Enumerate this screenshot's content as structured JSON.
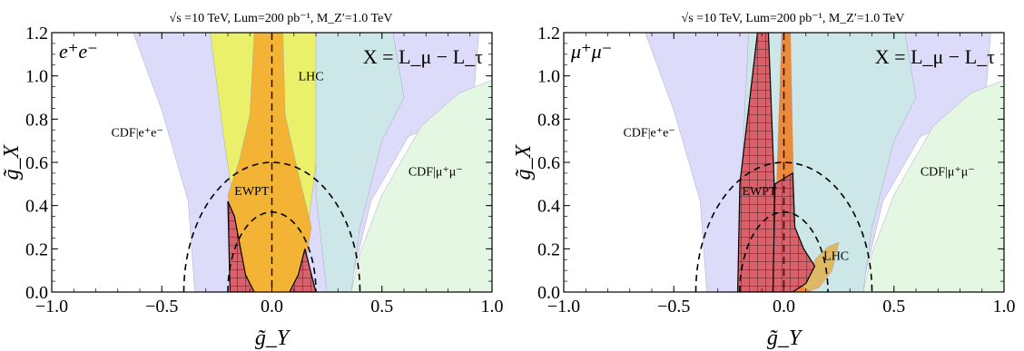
{
  "chart_data": [
    {
      "type": "area",
      "title": "√s =10 TeV,   Lum=200 pb⁻¹,   M_Z′=1.0 TeV",
      "xlabel": "g̃_Y",
      "ylabel": "g̃_X",
      "xlim": [
        -1.0,
        1.0
      ],
      "ylim": [
        0.0,
        1.2
      ],
      "xticks": [
        "−1.0",
        "−0.5",
        "0.0",
        "0.5",
        "1.0"
      ],
      "yticks": [
        "0.0",
        "0.2",
        "0.4",
        "0.6",
        "0.8",
        "1.0",
        "1.2"
      ],
      "corner_label": "e⁺e⁻",
      "model_label": "X = L_μ − L_τ",
      "regions": [
        {
          "name": "CDF|e⁺e⁻",
          "color": "#dcdcfa",
          "points": [
            [
              -0.63,
              1.2
            ],
            [
              -0.5,
              0.84
            ],
            [
              -0.38,
              0.42
            ],
            [
              -0.35,
              0.0
            ],
            [
              0.35,
              0.0
            ],
            [
              0.45,
              0.42
            ],
            [
              0.62,
              0.72
            ],
            [
              0.8,
              0.8
            ],
            [
              0.92,
              0.95
            ],
            [
              0.94,
              1.2
            ]
          ]
        },
        {
          "name": "CDF|μ⁺μ⁻",
          "color": "#e4f7e2",
          "points": [
            [
              0.36,
              0.0
            ],
            [
              1.0,
              0.0
            ],
            [
              1.0,
              0.98
            ],
            [
              0.85,
              0.92
            ],
            [
              0.68,
              0.77
            ],
            [
              0.5,
              0.45
            ],
            [
              0.4,
              0.18
            ]
          ]
        },
        {
          "name": "LHC",
          "color": "#eaf06a",
          "points": [
            [
              -0.28,
              1.2
            ],
            [
              -0.22,
              0.72
            ],
            [
              -0.15,
              0.25
            ],
            [
              -0.13,
              0.0
            ],
            [
              0.13,
              0.0
            ],
            [
              0.17,
              0.35
            ],
            [
              0.22,
              0.75
            ],
            [
              0.28,
              1.2
            ]
          ]
        },
        {
          "name": "EWPT",
          "color": "#f3b436",
          "points": [
            [
              -0.08,
              1.2
            ],
            [
              -0.1,
              0.82
            ],
            [
              -0.15,
              0.6
            ],
            [
              -0.2,
              0.45
            ],
            [
              -0.13,
              0.0
            ],
            [
              0.13,
              0.0
            ],
            [
              0.18,
              0.3
            ],
            [
              0.12,
              0.55
            ],
            [
              0.06,
              0.82
            ],
            [
              0.05,
              1.2
            ]
          ]
        },
        {
          "name": "cdf-overlap",
          "color": "#cde6e8",
          "points": [
            [
              0.2,
              1.2
            ],
            [
              0.2,
              0.7
            ],
            [
              0.2,
              0.45
            ],
            [
              0.25,
              0.0
            ],
            [
              0.36,
              0.0
            ],
            [
              0.4,
              0.3
            ],
            [
              0.5,
              0.7
            ],
            [
              0.6,
              0.9
            ],
            [
              0.55,
              1.2
            ]
          ]
        }
      ],
      "excluded_regions": [
        {
          "points": [
            [
              -0.19,
              0.0
            ],
            [
              -0.2,
              0.42
            ],
            [
              -0.17,
              0.35
            ],
            [
              -0.12,
              0.08
            ],
            [
              -0.08,
              0.0
            ]
          ]
        },
        {
          "points": [
            [
              0.08,
              0.0
            ],
            [
              0.12,
              0.08
            ],
            [
              0.15,
              0.2
            ],
            [
              0.18,
              0.08
            ],
            [
              0.2,
              0.0
            ]
          ]
        }
      ],
      "ellipses": [
        {
          "rx": 0.4,
          "ry": 0.6
        },
        {
          "rx": 0.2,
          "ry": 0.37
        }
      ],
      "labels": [
        {
          "text": "CDF|e⁺e⁻",
          "x": -0.73,
          "y": 0.72
        },
        {
          "text": "CDF|μ⁺μ⁻",
          "x": 0.62,
          "y": 0.54
        },
        {
          "text": "LHC",
          "x": 0.12,
          "y": 0.98
        },
        {
          "text": "EWPT",
          "x": -0.17,
          "y": 0.45
        }
      ]
    },
    {
      "type": "area",
      "title": "√s =10 TeV,   Lum=200 pb⁻¹,   M_Z′=1.0 TeV",
      "xlabel": "g̃_Y",
      "ylabel": "g̃_X",
      "xlim": [
        -1.0,
        1.0
      ],
      "ylim": [
        0.0,
        1.2
      ],
      "xticks": [
        "−1.0",
        "−0.5",
        "0.0",
        "0.5",
        "1.0"
      ],
      "yticks": [
        "0.0",
        "0.2",
        "0.4",
        "0.6",
        "0.8",
        "1.0",
        "1.2"
      ],
      "corner_label": "μ⁺μ⁻",
      "model_label": "X = L_μ − L_τ",
      "regions": [
        {
          "name": "CDF|e⁺e⁻",
          "color": "#dcdcfa",
          "points": [
            [
              -0.63,
              1.2
            ],
            [
              -0.5,
              0.84
            ],
            [
              -0.38,
              0.42
            ],
            [
              -0.35,
              0.0
            ],
            [
              0.35,
              0.0
            ],
            [
              0.45,
              0.42
            ],
            [
              0.62,
              0.72
            ],
            [
              0.8,
              0.8
            ],
            [
              0.92,
              0.95
            ],
            [
              0.94,
              1.2
            ]
          ]
        },
        {
          "name": "CDF|μ⁺μ⁻",
          "color": "#e4f7e2",
          "points": [
            [
              0.36,
              0.0
            ],
            [
              1.0,
              0.0
            ],
            [
              1.0,
              0.98
            ],
            [
              0.85,
              0.92
            ],
            [
              0.68,
              0.77
            ],
            [
              0.5,
              0.45
            ],
            [
              0.4,
              0.18
            ]
          ]
        },
        {
          "name": "cdf-overlap",
          "color": "#cde6e8",
          "points": [
            [
              -0.16,
              1.2
            ],
            [
              -0.18,
              0.8
            ],
            [
              -0.2,
              0.3
            ],
            [
              -0.2,
              0.0
            ],
            [
              0.36,
              0.0
            ],
            [
              0.4,
              0.3
            ],
            [
              0.5,
              0.7
            ],
            [
              0.6,
              0.9
            ],
            [
              0.55,
              1.2
            ]
          ]
        },
        {
          "name": "LHC",
          "color": "#dfb865",
          "points": [
            [
              0.0,
              0.0
            ],
            [
              0.08,
              0.02
            ],
            [
              0.14,
              0.15
            ],
            [
              0.2,
              0.21
            ],
            [
              0.25,
              0.23
            ],
            [
              0.22,
              0.1
            ],
            [
              0.16,
              0.02
            ],
            [
              0.1,
              0.0
            ]
          ]
        },
        {
          "name": "EWPT",
          "color": "#ec8a3c",
          "points": [
            [
              -0.01,
              1.2
            ],
            [
              -0.04,
              0.3
            ],
            [
              -0.03,
              0.0
            ],
            [
              0.13,
              0.0
            ],
            [
              0.09,
              0.02
            ],
            [
              0.07,
              0.08
            ],
            [
              0.05,
              0.3
            ],
            [
              0.04,
              0.7
            ],
            [
              0.03,
              1.2
            ]
          ]
        }
      ],
      "excluded_regions": [
        {
          "points": [
            [
              -0.12,
              1.2
            ],
            [
              -0.2,
              0.5
            ],
            [
              -0.21,
              0.0
            ],
            [
              -0.05,
              0.0
            ],
            [
              -0.04,
              0.4
            ],
            [
              -0.07,
              1.2
            ]
          ]
        },
        {
          "points": [
            [
              -0.05,
              0.0
            ],
            [
              0.04,
              0.0
            ],
            [
              0.1,
              0.04
            ],
            [
              0.14,
              0.12
            ],
            [
              0.09,
              0.2
            ],
            [
              0.05,
              0.3
            ],
            [
              0.04,
              0.55
            ],
            [
              -0.04,
              0.5
            ]
          ]
        }
      ],
      "ellipses": [
        {
          "rx": 0.4,
          "ry": 0.6
        },
        {
          "rx": 0.2,
          "ry": 0.37
        }
      ],
      "labels": [
        {
          "text": "CDF|e⁺e⁻",
          "x": -0.73,
          "y": 0.72
        },
        {
          "text": "CDF|μ⁺μ⁻",
          "x": 0.62,
          "y": 0.54
        },
        {
          "text": "LHC",
          "x": 0.18,
          "y": 0.15
        },
        {
          "text": "EWPT",
          "x": -0.19,
          "y": 0.45
        }
      ]
    }
  ]
}
